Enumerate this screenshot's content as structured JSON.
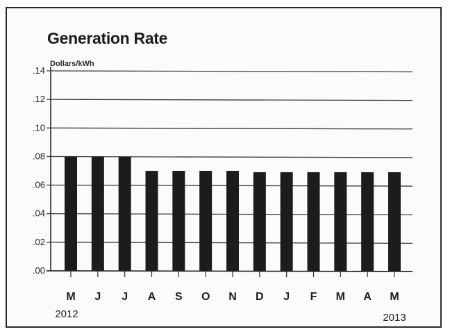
{
  "chart_data": {
    "type": "bar",
    "title": "Generation Rate",
    "ylabel": "Dollars/kWh",
    "xlabel": "",
    "categories": [
      "M",
      "J",
      "J",
      "A",
      "S",
      "O",
      "N",
      "D",
      "J",
      "F",
      "M",
      "A",
      "M"
    ],
    "values": [
      0.08,
      0.08,
      0.08,
      0.07,
      0.07,
      0.07,
      0.07,
      0.069,
      0.069,
      0.069,
      0.069,
      0.069,
      0.069
    ],
    "ylim": [
      0,
      0.14
    ],
    "yticks": [
      ".00",
      ".02",
      ".04",
      ".06",
      ".08",
      ".10",
      ".12",
      ".14"
    ],
    "year_labels": [
      "2012",
      "2013"
    ],
    "grid": true,
    "legend": "none",
    "colors": {
      "bar": "#1c1c1c",
      "grid": "#3a3a3a",
      "axis": "#2a2a2a"
    }
  }
}
